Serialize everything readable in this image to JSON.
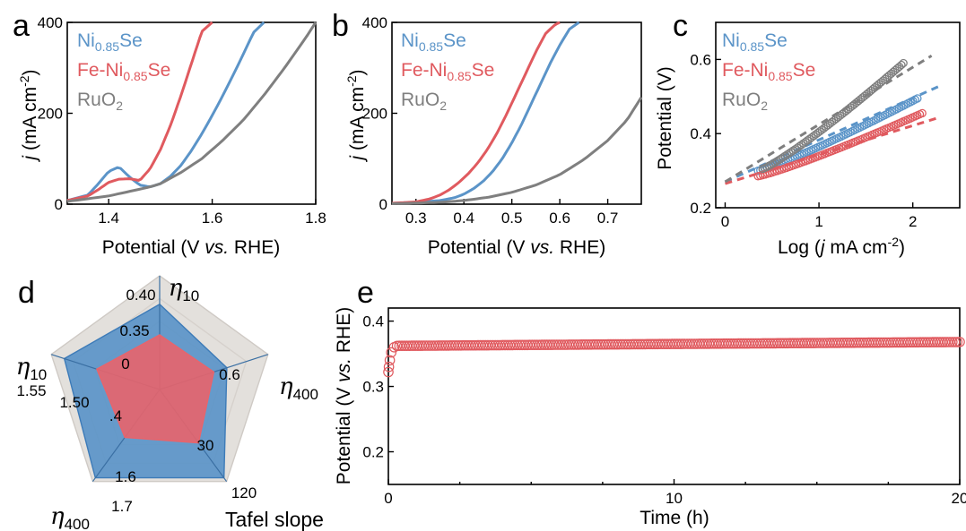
{
  "colors": {
    "ni": "#5b94c8",
    "fe": "#e05a5f",
    "ru": "#7f7f7f",
    "radar_outer": "#e3e0dc",
    "radar_ni": "#5b94c8",
    "radar_fe": "#e8646b"
  },
  "panels": {
    "a": {
      "label": "a",
      "xlabel": {
        "pre": "Potential (V ",
        "ital": "vs.",
        "post": " RHE)"
      },
      "ylabel": {
        "j": "j",
        "rest": " (mA cm",
        "exp": "-2",
        "close": ")"
      },
      "legend": [
        {
          "base": "Ni",
          "sub": "0.85",
          "post": "Se",
          "color": "#5b94c8"
        },
        {
          "base": "Fe-Ni",
          "sub": "0.85",
          "post": "Se",
          "color": "#e05a5f"
        },
        {
          "base": "RuO",
          "sub": "2",
          "post": "",
          "color": "#7f7f7f"
        }
      ]
    },
    "b": {
      "label": "b",
      "xlabel": {
        "pre": "Potential (V ",
        "ital": "vs.",
        "post": " RHE)"
      },
      "ylabel": {
        "j": "j",
        "rest": " (mA cm",
        "exp": "-2",
        "close": ")"
      },
      "legend": [
        {
          "base": "Ni",
          "sub": "0.85",
          "post": "Se",
          "color": "#5b94c8"
        },
        {
          "base": "Fe-Ni",
          "sub": "0.85",
          "post": "Se",
          "color": "#e05a5f"
        },
        {
          "base": "RuO",
          "sub": "2",
          "post": "",
          "color": "#7f7f7f"
        }
      ]
    },
    "c": {
      "label": "c",
      "xlabel": {
        "pre": "Log (",
        "ital": "j",
        "post": " mA cm",
        "exp": "-2",
        "close": ")"
      },
      "ylabel": "Potential (V)",
      "legend": [
        {
          "base": "Ni",
          "sub": "0.85",
          "post": "Se",
          "color": "#5b94c8"
        },
        {
          "base": "Fe-Ni",
          "sub": "0.85",
          "post": "Se",
          "color": "#e05a5f"
        },
        {
          "base": "RuO",
          "sub": "2",
          "post": "",
          "color": "#7f7f7f"
        }
      ]
    },
    "d": {
      "label": "d",
      "axes": [
        {
          "sym": "η",
          "sub": "10"
        },
        {
          "sym": "η",
          "sub": "400"
        },
        {
          "sym": "",
          "sub": "",
          "text": "Tafel slope"
        },
        {
          "sym": "η",
          "sub": "400"
        },
        {
          "sym": "η",
          "sub": "10"
        }
      ],
      "ticks": [
        "0.40",
        "0.35",
        "0",
        "0.6",
        "30",
        "120",
        "1.6",
        "1.7",
        "1.55",
        "1.50",
        ".4"
      ]
    },
    "e": {
      "label": "e",
      "xlabel": "Time (h)",
      "ylabel": {
        "pre": "Potential (V ",
        "ital": "vs.",
        "post": " RHE)"
      }
    }
  },
  "chart_data": [
    {
      "panel": "a",
      "type": "line",
      "xlim": [
        1.32,
        1.8
      ],
      "ylim": [
        0,
        400
      ],
      "xticks": [
        1.4,
        1.6,
        1.8
      ],
      "yticks": [
        0,
        200,
        400
      ],
      "series": [
        {
          "name": "Ni0.85Se",
          "color": "#5b94c8",
          "x": [
            1.32,
            1.36,
            1.38,
            1.4,
            1.42,
            1.44,
            1.46,
            1.48,
            1.5,
            1.52,
            1.54,
            1.56,
            1.58,
            1.6,
            1.62,
            1.64,
            1.66,
            1.68,
            1.7
          ],
          "y": [
            8,
            20,
            45,
            72,
            82,
            60,
            42,
            38,
            45,
            62,
            86,
            118,
            155,
            195,
            238,
            283,
            330,
            378,
            400
          ]
        },
        {
          "name": "Fe-Ni0.85Se",
          "color": "#e05a5f",
          "x": [
            1.32,
            1.36,
            1.38,
            1.4,
            1.42,
            1.44,
            1.46,
            1.48,
            1.5,
            1.52,
            1.54,
            1.56,
            1.58,
            1.6
          ],
          "y": [
            8,
            18,
            32,
            48,
            55,
            56,
            52,
            78,
            120,
            175,
            240,
            310,
            380,
            400
          ]
        },
        {
          "name": "RuO2",
          "color": "#7f7f7f",
          "x": [
            1.32,
            1.4,
            1.44,
            1.48,
            1.5,
            1.54,
            1.58,
            1.62,
            1.66,
            1.7,
            1.74,
            1.78,
            1.8
          ],
          "y": [
            6,
            18,
            28,
            38,
            45,
            70,
            100,
            140,
            185,
            240,
            300,
            365,
            400
          ]
        }
      ]
    },
    {
      "panel": "b",
      "type": "line",
      "xlim": [
        0.25,
        0.77
      ],
      "ylim": [
        0,
        400
      ],
      "xticks": [
        0.3,
        0.4,
        0.5,
        0.6,
        0.7
      ],
      "yticks": [
        0,
        200,
        400
      ],
      "series": [
        {
          "name": "Ni0.85Se",
          "color": "#5b94c8",
          "x": [
            0.25,
            0.3,
            0.35,
            0.38,
            0.4,
            0.42,
            0.44,
            0.46,
            0.48,
            0.5,
            0.52,
            0.54,
            0.56,
            0.58,
            0.6,
            0.62,
            0.64
          ],
          "y": [
            2,
            4,
            8,
            14,
            22,
            34,
            50,
            72,
            100,
            135,
            175,
            220,
            265,
            310,
            350,
            385,
            400
          ]
        },
        {
          "name": "Fe-Ni0.85Se",
          "color": "#e05a5f",
          "x": [
            0.25,
            0.3,
            0.33,
            0.35,
            0.37,
            0.39,
            0.41,
            0.43,
            0.45,
            0.47,
            0.49,
            0.51,
            0.53,
            0.55,
            0.57,
            0.59,
            0.6
          ],
          "y": [
            2,
            5,
            12,
            20,
            32,
            48,
            68,
            92,
            122,
            158,
            200,
            245,
            290,
            335,
            375,
            395,
            400
          ]
        },
        {
          "name": "RuO2",
          "color": "#7f7f7f",
          "x": [
            0.25,
            0.35,
            0.4,
            0.45,
            0.5,
            0.55,
            0.6,
            0.65,
            0.7,
            0.74,
            0.77
          ],
          "y": [
            1,
            4,
            8,
            15,
            26,
            42,
            65,
            98,
            140,
            185,
            235
          ]
        }
      ]
    },
    {
      "panel": "c",
      "type": "scatter",
      "xlim": [
        -0.1,
        2.5
      ],
      "ylim": [
        0.2,
        0.7
      ],
      "xticks": [
        0,
        1,
        2
      ],
      "yticks": [
        0.2,
        0.4,
        0.6
      ],
      "series": [
        {
          "name": "Ni0.85Se",
          "color": "#5b94c8",
          "x": [
            0.35,
            2.05
          ],
          "y": [
            0.3,
            0.495
          ],
          "fit": {
            "x": [
              0,
              2.3
            ],
            "y": [
              0.27,
              0.53
            ]
          }
        },
        {
          "name": "Fe-Ni0.85Se",
          "color": "#e05a5f",
          "x": [
            0.35,
            2.1
          ],
          "y": [
            0.285,
            0.455
          ],
          "fit": {
            "x": [
              0,
              2.3
            ],
            "y": [
              0.265,
              0.445
            ]
          }
        },
        {
          "name": "RuO2",
          "color": "#7f7f7f",
          "x": [
            0.4,
            1.9
          ],
          "y": [
            0.305,
            0.59
          ],
          "fit": {
            "x": [
              0,
              2.2
            ],
            "y": [
              0.27,
              0.61
            ]
          }
        }
      ]
    },
    {
      "panel": "d",
      "type": "radar",
      "axes": [
        "η10",
        "η400",
        "Tafel slope",
        "η400",
        "η10"
      ],
      "series": [
        {
          "name": "Ni0.85Se",
          "color": "#5b94c8",
          "values": [
            0.75,
            0.62,
            0.96,
            0.96,
            0.88
          ]
        },
        {
          "name": "Fe-Ni0.85Se",
          "color": "#e8646b",
          "values": [
            0.48,
            0.5,
            0.58,
            0.52,
            0.58
          ]
        }
      ]
    },
    {
      "panel": "e",
      "type": "scatter",
      "xlim": [
        0,
        20
      ],
      "ylim": [
        0.15,
        0.42
      ],
      "xticks": [
        0,
        10,
        20
      ],
      "yticks": [
        0.2,
        0.3,
        0.4
      ],
      "series": [
        {
          "name": "Fe-Ni0.85Se",
          "color": "#e05a5f",
          "x": [
            0,
            0.05,
            0.1,
            0.2,
            0.4,
            20
          ],
          "y": [
            0.322,
            0.338,
            0.352,
            0.36,
            0.362,
            0.368
          ]
        }
      ]
    }
  ]
}
